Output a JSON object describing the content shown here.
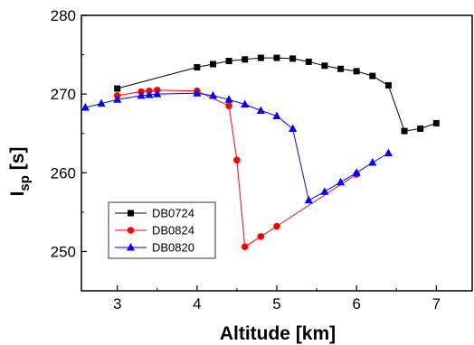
{
  "chart_data": {
    "type": "line",
    "xlabel": "Altitude [km]",
    "ylabel_main": "I",
    "ylabel_sub": "sp",
    "ylabel_unit": " [s]",
    "xlim": [
      2.55,
      7.45
    ],
    "ylim": [
      245,
      280
    ],
    "xticks": [
      3,
      4,
      5,
      6,
      7
    ],
    "yticks": [
      250,
      260,
      270,
      280
    ],
    "grid": false,
    "legend_position": "bottom-left",
    "series": [
      {
        "name": "DB0724",
        "color": "#000000",
        "marker": "square",
        "points": [
          [
            3.0,
            270.7
          ],
          [
            4.0,
            273.4
          ],
          [
            4.2,
            273.8
          ],
          [
            4.4,
            274.2
          ],
          [
            4.6,
            274.4
          ],
          [
            4.8,
            274.6
          ],
          [
            5.0,
            274.6
          ],
          [
            5.2,
            274.5
          ],
          [
            5.4,
            274.1
          ],
          [
            5.6,
            273.6
          ],
          [
            5.8,
            273.2
          ],
          [
            6.0,
            272.9
          ],
          [
            6.2,
            272.3
          ],
          [
            6.4,
            271.1
          ],
          [
            6.6,
            265.3
          ],
          [
            6.8,
            265.6
          ],
          [
            7.0,
            266.3
          ]
        ]
      },
      {
        "name": "DB0824",
        "color": "#ff0000",
        "marker": "circle",
        "points": [
          [
            3.0,
            269.8
          ],
          [
            3.3,
            270.3
          ],
          [
            3.4,
            270.4
          ],
          [
            3.5,
            270.5
          ],
          [
            4.0,
            270.4
          ],
          [
            4.4,
            268.5
          ],
          [
            4.5,
            261.6
          ],
          [
            4.6,
            250.6
          ],
          [
            4.8,
            251.9
          ],
          [
            5.0,
            253.2
          ],
          [
            6.0,
            259.8
          ]
        ]
      },
      {
        "name": "DB0820",
        "color": "#0000ff",
        "marker": "triangle",
        "points": [
          [
            2.6,
            268.3
          ],
          [
            2.8,
            268.8
          ],
          [
            3.0,
            269.3
          ],
          [
            3.3,
            269.8
          ],
          [
            3.4,
            269.9
          ],
          [
            3.5,
            270.0
          ],
          [
            4.0,
            270.1
          ],
          [
            4.2,
            269.8
          ],
          [
            4.4,
            269.3
          ],
          [
            4.6,
            268.7
          ],
          [
            4.8,
            267.9
          ],
          [
            5.0,
            267.2
          ],
          [
            5.2,
            265.6
          ],
          [
            5.4,
            256.5
          ],
          [
            5.6,
            257.6
          ],
          [
            5.8,
            258.8
          ],
          [
            6.0,
            260.0
          ],
          [
            6.2,
            261.3
          ],
          [
            6.4,
            262.5
          ]
        ]
      }
    ]
  }
}
